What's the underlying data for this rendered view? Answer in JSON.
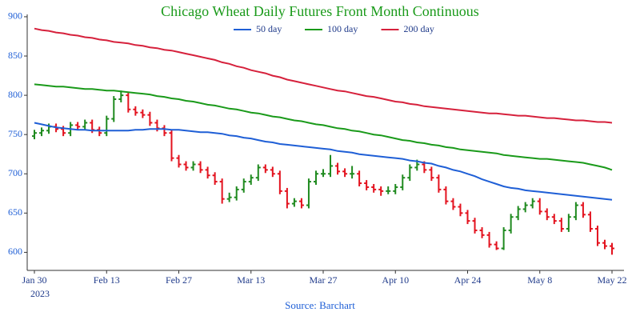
{
  "chart_data": {
    "type": "ohlc",
    "title": "Chicago Wheat Daily Futures Front Month Continuous",
    "source": "Source: Barchart",
    "year_label": "2023",
    "categories": [
      "Jan 30",
      null,
      null,
      null,
      null,
      null,
      null,
      null,
      null,
      null,
      "Feb 13",
      null,
      null,
      null,
      null,
      null,
      null,
      null,
      null,
      null,
      "Feb 27",
      null,
      null,
      null,
      null,
      null,
      null,
      null,
      null,
      null,
      "Mar 13",
      null,
      null,
      null,
      null,
      null,
      null,
      null,
      null,
      null,
      "Mar 27",
      null,
      null,
      null,
      null,
      null,
      null,
      null,
      null,
      null,
      "Apr 10",
      null,
      null,
      null,
      null,
      null,
      null,
      null,
      null,
      null,
      "Apr 24",
      null,
      null,
      null,
      null,
      null,
      null,
      null,
      null,
      null,
      "May 8",
      null,
      null,
      null,
      null,
      null,
      null,
      null,
      null,
      null,
      "May 22"
    ],
    "ohlc": {
      "up_color": "#1f8a1f",
      "down_color": "#e3121e",
      "open": [
        748,
        752,
        755,
        760,
        757,
        752,
        762,
        760,
        765,
        756,
        752,
        770,
        795,
        800,
        782,
        778,
        775,
        765,
        758,
        752,
        720,
        712,
        708,
        712,
        705,
        698,
        690,
        668,
        670,
        680,
        690,
        695,
        708,
        705,
        700,
        678,
        662,
        665,
        660,
        690,
        700,
        700,
        710,
        703,
        700,
        700,
        688,
        683,
        680,
        678,
        678,
        683,
        695,
        708,
        712,
        705,
        695,
        680,
        665,
        658,
        650,
        640,
        628,
        622,
        610,
        605,
        628,
        645,
        655,
        660,
        665,
        652,
        645,
        640,
        630,
        645,
        660,
        648,
        630,
        612,
        608
      ],
      "high": [
        756,
        759,
        764,
        764,
        761,
        766,
        766,
        769,
        769,
        760,
        774,
        799,
        806,
        804,
        786,
        782,
        779,
        769,
        762,
        756,
        724,
        716,
        716,
        716,
        709,
        702,
        694,
        676,
        684,
        694,
        699,
        712,
        712,
        709,
        704,
        682,
        669,
        669,
        694,
        704,
        706,
        724,
        714,
        707,
        710,
        704,
        692,
        687,
        684,
        684,
        687,
        699,
        712,
        718,
        716,
        709,
        699,
        684,
        669,
        662,
        654,
        644,
        632,
        626,
        614,
        632,
        649,
        659,
        664,
        669,
        669,
        656,
        649,
        644,
        649,
        664,
        664,
        652,
        634,
        616,
        612
      ],
      "low": [
        744,
        748,
        751,
        753,
        748,
        748,
        756,
        756,
        752,
        748,
        748,
        766,
        791,
        778,
        774,
        771,
        761,
        754,
        748,
        716,
        708,
        704,
        704,
        701,
        694,
        686,
        662,
        664,
        666,
        676,
        686,
        691,
        701,
        696,
        674,
        656,
        658,
        656,
        656,
        686,
        696,
        696,
        699,
        696,
        694,
        684,
        679,
        676,
        672,
        674,
        674,
        679,
        691,
        704,
        701,
        691,
        676,
        661,
        654,
        646,
        636,
        624,
        618,
        606,
        603,
        603,
        624,
        641,
        651,
        656,
        648,
        641,
        636,
        626,
        626,
        641,
        644,
        626,
        608,
        604,
        597
      ],
      "close": [
        752,
        755,
        760,
        757,
        752,
        762,
        760,
        765,
        756,
        752,
        770,
        795,
        800,
        782,
        778,
        775,
        765,
        758,
        752,
        720,
        712,
        708,
        712,
        705,
        698,
        690,
        668,
        670,
        680,
        690,
        695,
        708,
        705,
        700,
        678,
        662,
        665,
        660,
        690,
        700,
        700,
        710,
        703,
        700,
        700,
        688,
        683,
        680,
        678,
        678,
        683,
        695,
        708,
        712,
        705,
        695,
        680,
        665,
        658,
        650,
        640,
        628,
        622,
        610,
        605,
        628,
        645,
        655,
        660,
        665,
        652,
        645,
        640,
        630,
        645,
        660,
        648,
        630,
        612,
        608,
        605
      ]
    },
    "series": [
      {
        "name": "50 day",
        "color": "#1f5fd6",
        "values": [
          765,
          763,
          761,
          759,
          758,
          757,
          756,
          756,
          755,
          755,
          755,
          755,
          755,
          755,
          756,
          756,
          757,
          757,
          757,
          756,
          756,
          755,
          754,
          753,
          753,
          752,
          751,
          749,
          748,
          746,
          745,
          743,
          741,
          740,
          738,
          737,
          736,
          735,
          734,
          733,
          732,
          731,
          729,
          728,
          727,
          725,
          724,
          723,
          722,
          721,
          720,
          719,
          717,
          716,
          714,
          713,
          710,
          708,
          705,
          703,
          700,
          697,
          693,
          690,
          687,
          684,
          682,
          681,
          679,
          678,
          677,
          676,
          675,
          674,
          673,
          672,
          671,
          670,
          669,
          668,
          667
        ]
      },
      {
        "name": "100 day",
        "color": "#1a9a1a",
        "values": [
          814,
          813,
          812,
          811,
          811,
          810,
          809,
          808,
          808,
          807,
          806,
          806,
          805,
          804,
          803,
          802,
          801,
          799,
          798,
          796,
          795,
          793,
          792,
          790,
          788,
          787,
          785,
          783,
          782,
          780,
          778,
          777,
          775,
          773,
          772,
          770,
          768,
          767,
          765,
          763,
          762,
          760,
          758,
          757,
          755,
          754,
          752,
          750,
          749,
          747,
          745,
          743,
          742,
          740,
          739,
          737,
          736,
          734,
          733,
          731,
          730,
          729,
          728,
          727,
          726,
          724,
          723,
          722,
          721,
          720,
          719,
          719,
          718,
          717,
          716,
          715,
          714,
          712,
          710,
          708,
          705
        ]
      },
      {
        "name": "200 day",
        "color": "#d6213c",
        "values": [
          885,
          883,
          882,
          880,
          879,
          877,
          876,
          874,
          873,
          871,
          870,
          868,
          867,
          866,
          864,
          863,
          861,
          860,
          858,
          857,
          855,
          853,
          851,
          849,
          847,
          845,
          842,
          840,
          837,
          835,
          832,
          830,
          828,
          825,
          823,
          820,
          818,
          816,
          814,
          812,
          810,
          808,
          806,
          805,
          803,
          801,
          799,
          798,
          796,
          794,
          792,
          791,
          789,
          788,
          786,
          785,
          784,
          783,
          782,
          781,
          780,
          779,
          778,
          777,
          777,
          776,
          775,
          774,
          774,
          773,
          772,
          771,
          771,
          770,
          769,
          768,
          768,
          767,
          766,
          766,
          765
        ]
      }
    ],
    "ylim": [
      577,
      903
    ],
    "yticks": [
      600,
      650,
      700,
      750,
      800,
      850,
      900
    ],
    "grid": false
  }
}
